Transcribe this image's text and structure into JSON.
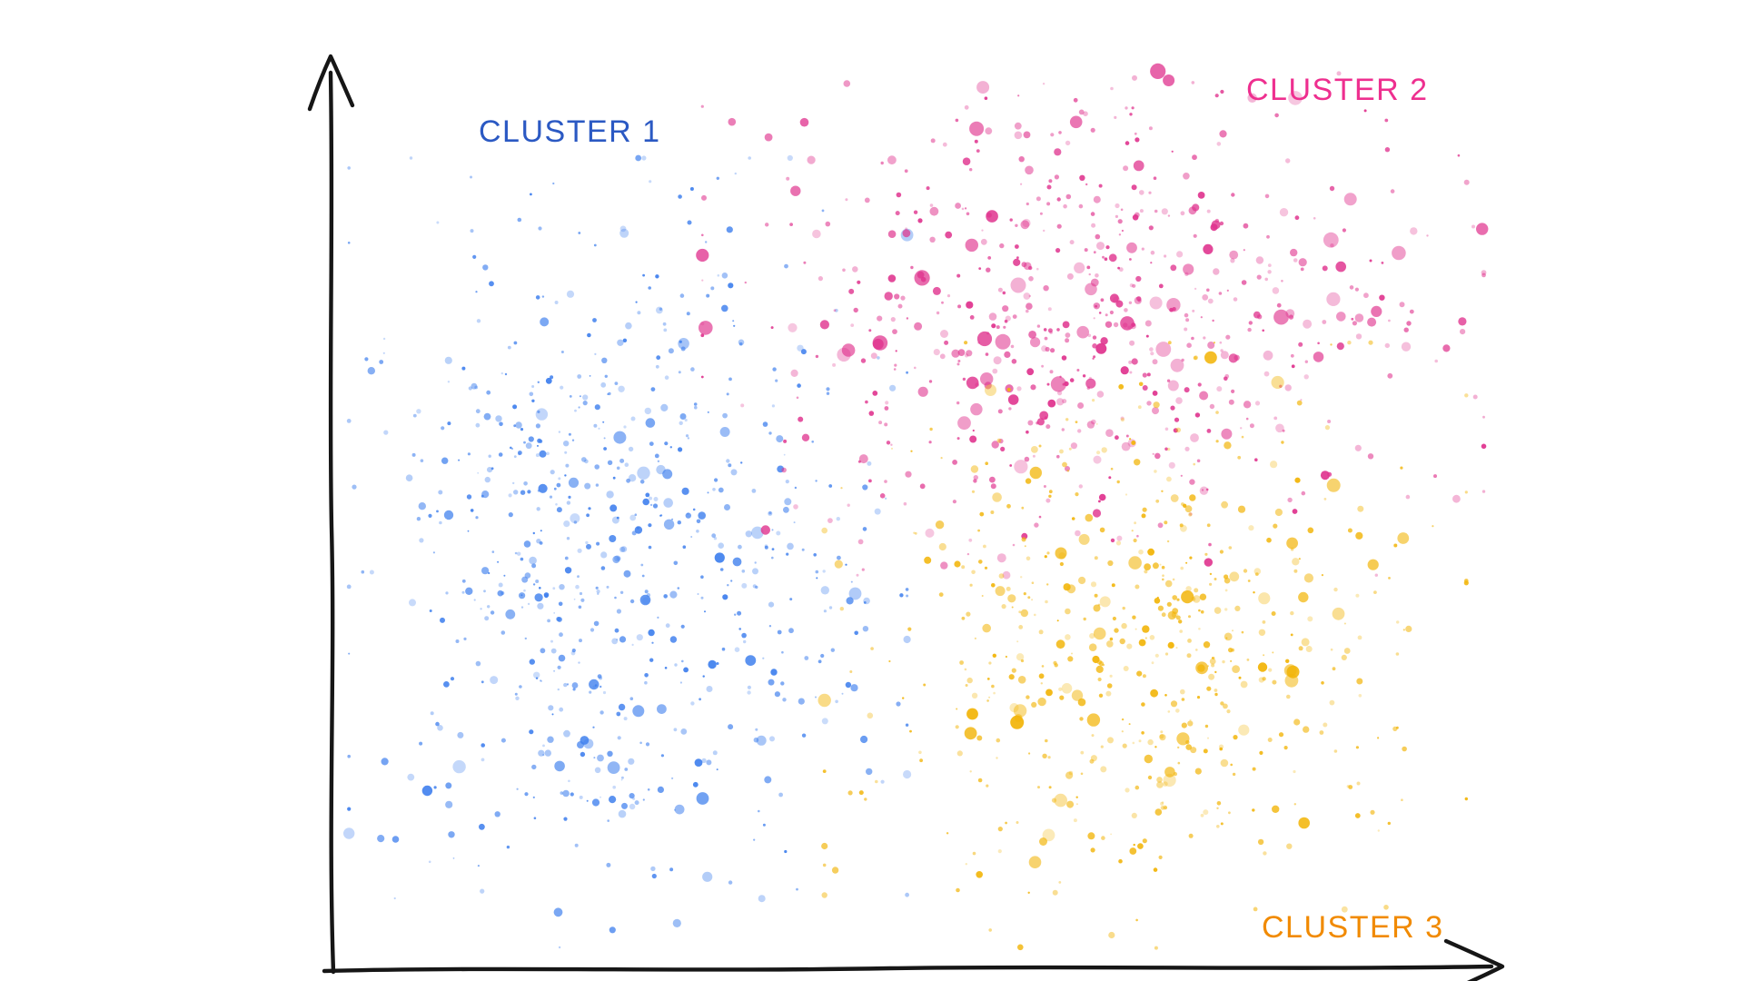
{
  "page": {
    "background": "#ffffff",
    "description": "Hand-drawn style scatter plot with three colored point clusters and unlabeled arrow axes"
  },
  "chart_data": {
    "type": "scatter",
    "title": "",
    "xlabel": "",
    "ylabel": "",
    "x_ticks": [],
    "y_ticks": [],
    "grid": false,
    "legend_position": "inline-cluster-labels",
    "axes": {
      "style": "hand-drawn-arrows",
      "color": "#161616"
    },
    "clusters": [
      {
        "name": "CLUSTER 1",
        "label_color": "#2b59c3",
        "point_color": "#4181ee",
        "center": {
          "x": 0.255,
          "y": 0.45
        },
        "sigma": {
          "x": 0.1,
          "y": 0.185
        },
        "count": 720,
        "seed": 7,
        "size_scale": 1.0
      },
      {
        "name": "CLUSTER 2",
        "label_color": "#ee2f8f",
        "point_color": "#e0358f",
        "center": {
          "x": 0.655,
          "y": 0.73
        },
        "sigma": {
          "x": 0.14,
          "y": 0.123
        },
        "count": 660,
        "seed": 13,
        "size_scale": 1.2
      },
      {
        "name": "CLUSTER 3",
        "label_color": "#f18a00",
        "point_color": "#f2b50a",
        "center": {
          "x": 0.7,
          "y": 0.35
        },
        "sigma": {
          "x": 0.115,
          "y": 0.142
        },
        "count": 580,
        "seed": 21,
        "size_scale": 1.05
      }
    ]
  }
}
